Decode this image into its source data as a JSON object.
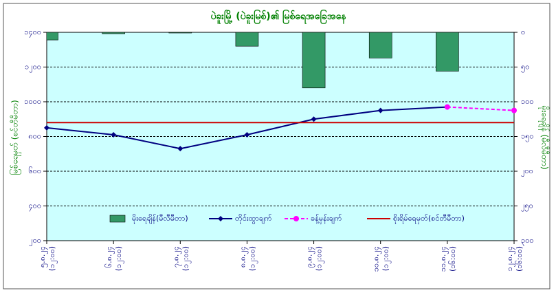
{
  "chart_data": {
    "type": "combo",
    "title": "ပဲခူးမြို့ (ပဲခူးမြစ်)၏ မြစ်ရေအခြေအနေ",
    "y_label": "မြစ်ရေမှတ် (စင်တီမီတာ)",
    "y2_label": "မိုးရေချိန် (မီလီမီတာ)",
    "categories": [
      "၅.၈.၂၄",
      "၆.၈.၂၄",
      "၇.၈.၂၄",
      "၈.၈.၂၄",
      "၉.၈.၂၄",
      "၁၀.၈.၂၄",
      "၁၁.၈.၂၄",
      "၁၂.၈.၂၄"
    ],
    "category_times": [
      "(၁၂:၀၀)",
      "(၁၂:၀၀)",
      "(၁၂:၀၀)",
      "(၁၂:၀၀)",
      "(၁၂:၀၀)",
      "(၁၂:၀၀)",
      "(၁၆:၀၀)",
      "(၁၆:၀၀)"
    ],
    "ylim": [
      200,
      1400
    ],
    "yticks": [
      {
        "value": 200,
        "label": "၂၀၀"
      },
      {
        "value": 400,
        "label": "၄၀၀"
      },
      {
        "value": 600,
        "label": "၆၀၀"
      },
      {
        "value": 800,
        "label": "၈၀၀"
      },
      {
        "value": 1000,
        "label": "၁၀၀၀"
      },
      {
        "value": 1200,
        "label": "၁၂၀၀"
      },
      {
        "value": 1400,
        "label": "၁၄၀၀"
      }
    ],
    "y2lim": [
      0,
      300
    ],
    "y2_inverted": true,
    "y2ticks": [
      {
        "value": 0,
        "label": "၀"
      },
      {
        "value": 50,
        "label": "၅၀"
      },
      {
        "value": 100,
        "label": "၁၀၀"
      },
      {
        "value": 150,
        "label": "၁၅၀"
      },
      {
        "value": 200,
        "label": "၂၀၀"
      },
      {
        "value": 250,
        "label": "၂၅၀"
      },
      {
        "value": 300,
        "label": "၃၀၀"
      }
    ],
    "grid": true,
    "legend": "bottom",
    "series": [
      {
        "name": "မိုးရေချိန်(မီလီမီတာ)",
        "type": "bar",
        "axis": "y2",
        "color": "#339966",
        "values": [
          11,
          2,
          1,
          20,
          80,
          37,
          56,
          null
        ]
      },
      {
        "name": "တိုင်းထွာချက်",
        "type": "line",
        "marker": "diamond",
        "color": "#000080",
        "values": [
          850,
          810,
          730,
          810,
          900,
          950,
          970,
          null
        ]
      },
      {
        "name": "ခန့်မှန်းချက်",
        "type": "line",
        "dashed": true,
        "marker": "circle",
        "color": "#ff00ff",
        "values": [
          null,
          null,
          null,
          null,
          null,
          null,
          970,
          950
        ]
      },
      {
        "name": "စိုးရိမ်ရေမှတ်(စင်တီမီတာ)",
        "type": "line",
        "color": "#cc0000",
        "values": [
          880,
          880,
          880,
          880,
          880,
          880,
          880,
          880
        ]
      }
    ]
  }
}
